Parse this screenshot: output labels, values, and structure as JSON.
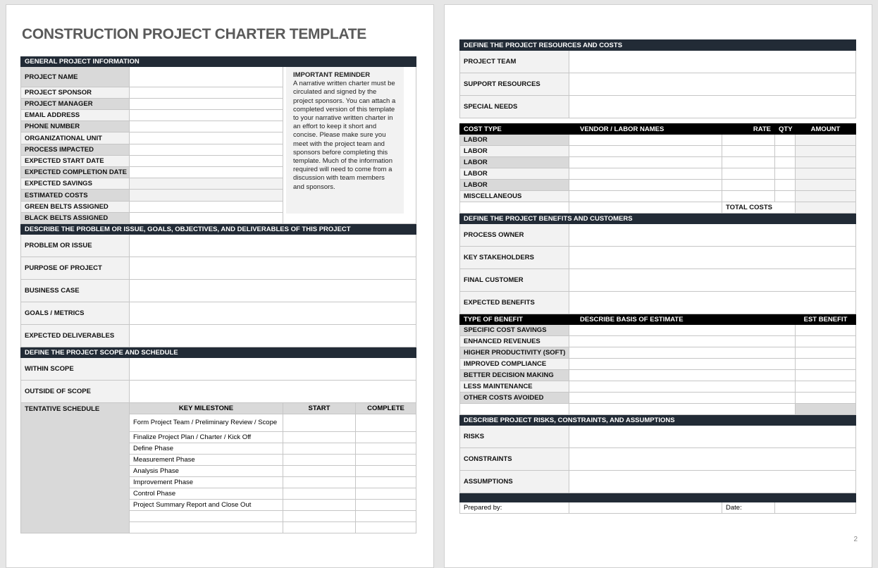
{
  "title": "CONSTRUCTION PROJECT CHARTER TEMPLATE",
  "general": {
    "heading": "GENERAL PROJECT INFORMATION",
    "fields": [
      "PROJECT NAME",
      "PROJECT SPONSOR",
      "PROJECT MANAGER",
      "EMAIL ADDRESS",
      "PHONE NUMBER",
      "ORGANIZATIONAL UNIT",
      "PROCESS IMPACTED",
      "EXPECTED START DATE",
      "EXPECTED COMPLETION DATE",
      "EXPECTED SAVINGS",
      "ESTIMATED COSTS",
      "GREEN BELTS ASSIGNED",
      "BLACK BELTS ASSIGNED"
    ]
  },
  "reminder": {
    "title": "IMPORTANT REMINDER",
    "text": "A narrative written charter must be circulated and signed by the project sponsors. You can attach a completed version of this template to your narrative written charter in an effort to keep it short and concise. Please make sure you meet with the project team and sponsors before completing this template. Much of the information required will need to come from a discussion with team members and sponsors."
  },
  "problem": {
    "heading": "DESCRIBE THE PROBLEM OR ISSUE, GOALS, OBJECTIVES, AND DELIVERABLES OF THIS PROJECT",
    "fields": [
      "PROBLEM OR ISSUE",
      "PURPOSE OF PROJECT",
      "BUSINESS CASE",
      "GOALS / METRICS",
      "EXPECTED DELIVERABLES"
    ]
  },
  "scope": {
    "heading": "DEFINE THE PROJECT SCOPE AND SCHEDULE",
    "fields": [
      "WITHIN SCOPE",
      "OUTSIDE OF  SCOPE"
    ],
    "schedule_label": "TENTATIVE SCHEDULE",
    "columns": [
      "KEY MILESTONE",
      "START",
      "COMPLETE"
    ],
    "milestones": [
      "Form Project Team / Preliminary Review / Scope",
      "Finalize Project Plan / Charter / Kick Off",
      "Define Phase",
      "Measurement Phase",
      "Analysis Phase",
      "Improvement Phase",
      "Control Phase",
      "Project Summary Report and Close Out",
      "",
      ""
    ]
  },
  "resources": {
    "heading": "DEFINE THE PROJECT RESOURCES AND COSTS",
    "fields": [
      "PROJECT TEAM",
      "SUPPORT RESOURCES",
      "SPECIAL NEEDS"
    ]
  },
  "costs": {
    "columns": [
      "COST TYPE",
      "VENDOR / LABOR NAMES",
      "RATE",
      "QTY",
      "AMOUNT"
    ],
    "rows": [
      "LABOR",
      "LABOR",
      "LABOR",
      "LABOR",
      "LABOR",
      "MISCELLANEOUS"
    ],
    "total_label": "TOTAL COSTS"
  },
  "benefits": {
    "heading": "DEFINE THE PROJECT BENEFITS AND CUSTOMERS",
    "fields": [
      "PROCESS OWNER",
      "KEY STAKEHOLDERS",
      "FINAL CUSTOMER",
      "EXPECTED BENEFITS"
    ],
    "columns": [
      "TYPE OF BENEFIT",
      "DESCRIBE BASIS OF ESTIMATE",
      "EST BENEFIT"
    ],
    "types": [
      "SPECIFIC COST SAVINGS",
      "ENHANCED REVENUES",
      "HIGHER PRODUCTIVITY (SOFT)",
      "IMPROVED COMPLIANCE",
      "BETTER DECISION MAKING",
      "LESS MAINTENANCE",
      "OTHER COSTS AVOIDED"
    ]
  },
  "risks": {
    "heading": "DESCRIBE PROJECT RISKS, CONSTRAINTS, AND ASSUMPTIONS",
    "fields": [
      "RISKS",
      "CONSTRAINTS",
      "ASSUMPTIONS"
    ]
  },
  "signoff": {
    "prepared_label": "Prepared by:",
    "date_label": "Date:"
  },
  "page_number": "2",
  "colors": {
    "section_bar": "#222b36",
    "label_dark": "#d9d9d9",
    "label_light": "#f2f2f2"
  }
}
